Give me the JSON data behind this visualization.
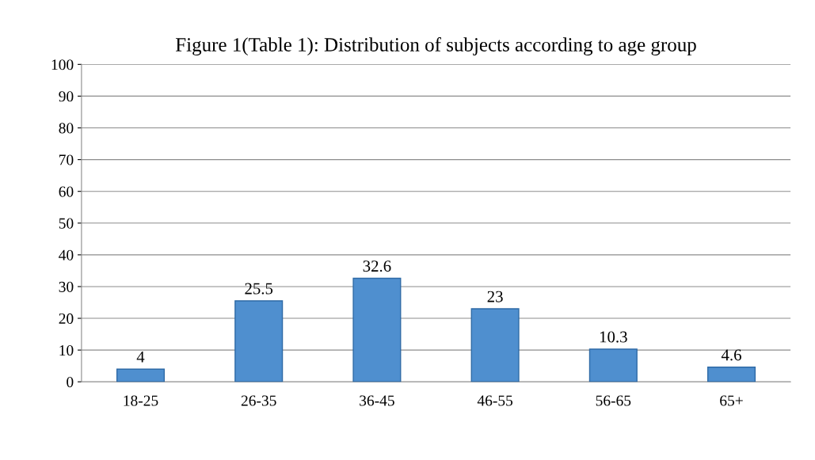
{
  "chart_data": {
    "type": "bar",
    "title": "Figure 1(Table 1): Distribution of subjects according to age group",
    "categories": [
      "18-25",
      "26-35",
      "36-45",
      "46-55",
      "56-65",
      "65+"
    ],
    "values": [
      4,
      25.5,
      32.6,
      23,
      10.3,
      4.6
    ],
    "color": "#4f8fcf",
    "ylim": [
      0,
      100
    ],
    "yticks": [
      0,
      10,
      20,
      30,
      40,
      50,
      60,
      70,
      80,
      90,
      100
    ],
    "grid": "y",
    "data_labels": true
  }
}
